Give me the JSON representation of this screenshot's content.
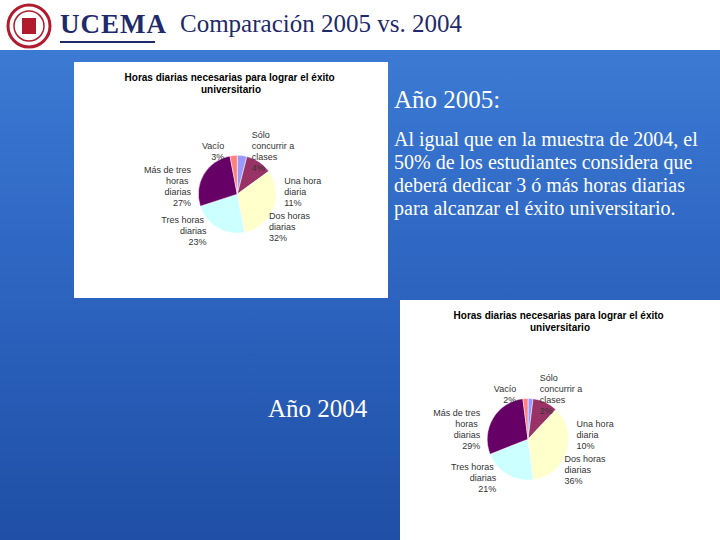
{
  "slide": {
    "logo_text": "UCEMA",
    "title": "Comparación 2005 vs. 2004",
    "note_heading": "Año 2005:",
    "note": "Al igual que en la muestra de 2004, el 50% de los estudiantes considera que deberá dedicar 3 ó más horas diarias para alcanzar el éxito universitario.",
    "label_2004": "Año 2004"
  },
  "chart_data": [
    {
      "type": "pie",
      "title": "Horas diarias necesarias para lograr el éxito universitario",
      "categories": [
        "Sólo concurrir a clases",
        "Una hora diaria",
        "Dos horas diarias",
        "Tres horas diarias",
        "Más de tres horas diarias",
        "Vacío"
      ],
      "values": [
        4,
        11,
        32,
        23,
        27,
        3
      ],
      "value_labels": [
        "4%",
        "11%",
        "32%",
        "23%",
        "27%",
        "3%"
      ],
      "colors": [
        "#9999ff",
        "#993366",
        "#ffffcc",
        "#ccffff",
        "#660066",
        "#ff8080"
      ],
      "data_labels": true
    },
    {
      "type": "pie",
      "title": "Horas diarias necesarias para lograr el éxito universitario",
      "categories": [
        "Sólo concurrir a clases",
        "Una hora diaria",
        "Dos horas diarias",
        "Tres horas diarias",
        "Más de tres horas diarias",
        "Vacío"
      ],
      "values": [
        2,
        10,
        36,
        21,
        29,
        2
      ],
      "value_labels": [
        "2%",
        "10%",
        "36%",
        "21%",
        "29%",
        "2%"
      ],
      "colors": [
        "#9999ff",
        "#993366",
        "#ffffcc",
        "#ccffff",
        "#660066",
        "#ff8080"
      ],
      "data_labels": true
    }
  ]
}
